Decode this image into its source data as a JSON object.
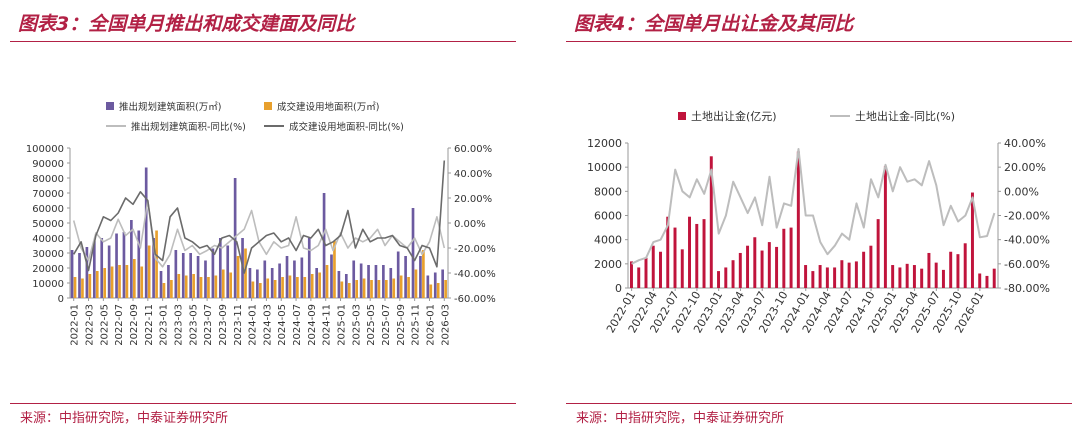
{
  "figures": [
    {
      "title": "图表3：全国单月推出和成交建面及同比",
      "source": "来源：中指研究院，中泰证券研究所"
    },
    {
      "title": "图表4：全国单月出让金及其同比",
      "source": "来源：中指研究院，中泰证券研究所"
    }
  ],
  "chart_data": [
    {
      "type": "bar",
      "x": [
        "2022-01",
        "2022-02",
        "2022-03",
        "2022-04",
        "2022-05",
        "2022-06",
        "2022-07",
        "2022-08",
        "2022-09",
        "2022-10",
        "2022-11",
        "2022-12",
        "2023-01",
        "2023-02",
        "2023-03",
        "2023-04",
        "2023-05",
        "2023-06",
        "2023-07",
        "2023-08",
        "2023-09",
        "2023-10",
        "2023-11",
        "2023-12",
        "2024-01",
        "2024-02",
        "2024-03",
        "2024-04",
        "2024-05",
        "2024-06",
        "2024-07",
        "2024-08",
        "2024-09",
        "2024-10",
        "2024-11",
        "2024-12",
        "2025-01",
        "2025-02",
        "2025-03",
        "2025-04",
        "2025-05",
        "2025-06",
        "2025-07",
        "2025-08",
        "2025-09",
        "2025-10",
        "2025-11",
        "2025-12",
        "2026-01",
        "2026-02",
        "2026-03"
      ],
      "x_tick_labels": [
        "2022-01",
        "2022-03",
        "2022-05",
        "2022-07",
        "2022-09",
        "2022-11",
        "2023-01",
        "2023-03",
        "2023-05",
        "2023-07",
        "2023-09",
        "2023-11",
        "2024-01",
        "2024-03",
        "2024-05",
        "2024-07",
        "2024-09",
        "2024-11",
        "2025-01",
        "2025-03",
        "2025-05",
        "2025-07",
        "2025-09",
        "2025-11",
        "2026-01",
        "2026-03"
      ],
      "series": [
        {
          "name": "推出规划建筑面积(万㎡)",
          "kind": "bar",
          "axis": "left",
          "color": "#6c5aa0",
          "values": [
            32000,
            30000,
            34000,
            38000,
            40000,
            35000,
            43000,
            44000,
            52000,
            45000,
            87000,
            40000,
            18000,
            22000,
            32000,
            30000,
            30000,
            28000,
            25000,
            33000,
            40000,
            35000,
            80000,
            40000,
            20000,
            19000,
            25000,
            20000,
            23000,
            28000,
            25000,
            27000,
            40000,
            20000,
            70000,
            29000,
            18000,
            16000,
            25000,
            23000,
            22000,
            22000,
            22000,
            20000,
            31000,
            28000,
            60000,
            28000,
            15000,
            17000,
            19000
          ]
        },
        {
          "name": "成交建设用地面积(万㎡)",
          "kind": "bar",
          "axis": "left",
          "color": "#e8a02d",
          "values": [
            14000,
            13000,
            16000,
            18000,
            20000,
            21000,
            22000,
            22000,
            26000,
            21000,
            35000,
            45000,
            10000,
            12000,
            16000,
            15000,
            16000,
            14000,
            14000,
            15000,
            19000,
            17000,
            28000,
            33000,
            11000,
            10000,
            13000,
            12000,
            14000,
            15000,
            14000,
            14000,
            16000,
            17000,
            22000,
            38000,
            11000,
            10000,
            12000,
            13000,
            12000,
            12000,
            12000,
            13000,
            15000,
            14000,
            19000,
            32000,
            9000,
            10000,
            12000
          ]
        },
        {
          "name": "推出规划建筑面积-同比(%)",
          "kind": "line",
          "axis": "right",
          "color": "#bdbdbd",
          "values": [
            0.02,
            -0.2,
            -0.3,
            -0.08,
            -0.15,
            -0.12,
            0.03,
            -0.1,
            -0.05,
            -0.2,
            0.18,
            -0.28,
            -0.35,
            -0.25,
            -0.05,
            -0.22,
            -0.18,
            -0.25,
            -0.22,
            -0.18,
            -0.2,
            -0.15,
            -0.1,
            -0.05,
            0.1,
            -0.15,
            -0.25,
            -0.15,
            -0.2,
            -0.18,
            0.05,
            -0.2,
            -0.22,
            -0.18,
            -0.05,
            -0.22,
            -0.08,
            -0.2,
            -0.12,
            -0.15,
            -0.12,
            -0.05,
            -0.18,
            -0.1,
            -0.15,
            -0.2,
            -0.12,
            -0.25,
            -0.15,
            0.05,
            -0.2
          ]
        },
        {
          "name": "成交建设用地面积-同比(%)",
          "kind": "line",
          "axis": "right",
          "color": "#6b6b6b",
          "values": [
            -0.25,
            -0.15,
            -0.38,
            -0.1,
            0.05,
            0.02,
            0.08,
            0.2,
            0.15,
            0.25,
            0.18,
            -0.25,
            -0.3,
            0.05,
            0.12,
            -0.12,
            -0.15,
            -0.2,
            -0.18,
            -0.25,
            -0.12,
            -0.1,
            -0.15,
            -0.4,
            -0.2,
            -0.15,
            -0.1,
            -0.08,
            -0.15,
            -0.12,
            -0.22,
            -0.1,
            -0.12,
            -0.05,
            -0.18,
            -0.15,
            -0.1,
            0.1,
            -0.2,
            -0.05,
            -0.15,
            -0.12,
            -0.12,
            -0.1,
            -0.18,
            -0.2,
            -0.3,
            -0.18,
            -0.2,
            -0.35,
            0.5
          ]
        }
      ],
      "y_left": {
        "min": 0,
        "max": 100000,
        "ticks": [
          "0",
          "10000",
          "20000",
          "30000",
          "40000",
          "50000",
          "60000",
          "70000",
          "80000",
          "90000",
          "100000"
        ]
      },
      "y_right": {
        "min": -0.6,
        "max": 0.6,
        "ticks": [
          "-60.00%",
          "-40.00%",
          "-20.00%",
          "0.00%",
          "20.00%",
          "40.00%",
          "60.00%"
        ]
      },
      "legend_position": "top",
      "grid": false
    },
    {
      "type": "bar",
      "x": [
        "2022-01",
        "2022-02",
        "2022-03",
        "2022-04",
        "2022-05",
        "2022-06",
        "2022-07",
        "2022-08",
        "2022-09",
        "2022-10",
        "2022-11",
        "2022-12",
        "2023-01",
        "2023-02",
        "2023-03",
        "2023-04",
        "2023-05",
        "2023-06",
        "2023-07",
        "2023-08",
        "2023-09",
        "2023-10",
        "2023-11",
        "2023-12",
        "2024-01",
        "2024-02",
        "2024-03",
        "2024-04",
        "2024-05",
        "2024-06",
        "2024-07",
        "2024-08",
        "2024-09",
        "2024-10",
        "2024-11",
        "2024-12",
        "2025-01",
        "2025-02",
        "2025-03",
        "2025-04",
        "2025-05",
        "2025-06",
        "2025-07",
        "2025-08",
        "2025-09",
        "2025-10",
        "2025-11",
        "2025-12",
        "2026-01",
        "2026-02",
        "2026-03"
      ],
      "x_tick_labels": [
        "2022-01",
        "2022-04",
        "2022-07",
        "2022-10",
        "2023-01",
        "2023-04",
        "2023-07",
        "2023-10",
        "2024-01",
        "2024-04",
        "2024-07",
        "2024-10",
        "2025-01",
        "2025-04",
        "2025-07",
        "2025-10",
        "2026-01"
      ],
      "series": [
        {
          "name": "土地出让金(亿元)",
          "kind": "bar",
          "axis": "left",
          "color": "#c0143c",
          "values": [
            2200,
            1700,
            2500,
            3500,
            3000,
            5900,
            5000,
            3200,
            5900,
            5300,
            5700,
            10900,
            1400,
            1700,
            2300,
            2900,
            3500,
            4200,
            3100,
            3800,
            3400,
            4900,
            5000,
            11300,
            1900,
            1400,
            1900,
            1700,
            1700,
            2300,
            2100,
            2200,
            3000,
            3500,
            5700,
            10100,
            1900,
            1700,
            2000,
            1900,
            1600,
            2900,
            2100,
            1500,
            3000,
            2800,
            3700,
            7900,
            1200,
            1000,
            1600
          ]
        },
        {
          "name": "土地出让金-同比(%)",
          "kind": "line",
          "axis": "right",
          "color": "#bdbdbd",
          "values": [
            -0.6,
            -0.57,
            -0.55,
            -0.42,
            -0.4,
            -0.28,
            0.18,
            0.0,
            -0.05,
            0.1,
            -0.02,
            0.18,
            -0.35,
            -0.2,
            0.08,
            -0.05,
            -0.18,
            -0.05,
            -0.28,
            0.12,
            -0.3,
            -0.1,
            -0.12,
            0.35,
            -0.2,
            -0.2,
            -0.42,
            -0.52,
            -0.45,
            -0.35,
            -0.4,
            -0.1,
            -0.3,
            0.1,
            -0.05,
            0.22,
            0.0,
            0.2,
            0.08,
            0.1,
            0.05,
            0.25,
            0.05,
            -0.28,
            -0.12,
            -0.25,
            -0.2,
            -0.05,
            -0.38,
            -0.37,
            -0.18
          ]
        }
      ],
      "y_left": {
        "min": 0,
        "max": 12000,
        "ticks": [
          "0",
          "2000",
          "4000",
          "6000",
          "8000",
          "10000",
          "12000"
        ]
      },
      "y_right": {
        "min": -0.8,
        "max": 0.4,
        "ticks": [
          "-80.00%",
          "-60.00%",
          "-40.00%",
          "-20.00%",
          "0.00%",
          "20.00%",
          "40.00%"
        ]
      },
      "legend_position": "top",
      "grid": false
    }
  ]
}
